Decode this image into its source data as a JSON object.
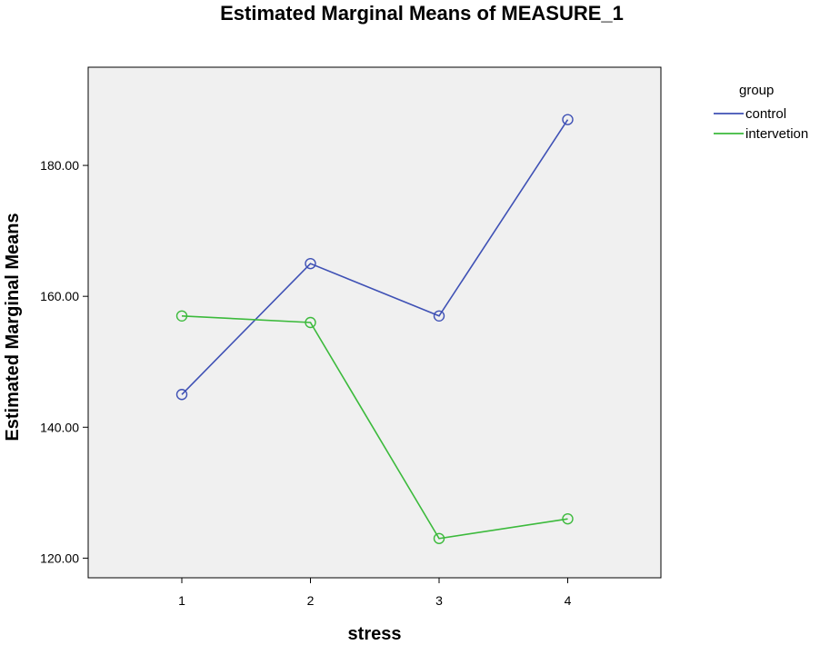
{
  "chart_data": {
    "type": "line",
    "title": "Estimated Marginal Means of MEASURE_1",
    "xlabel": "stress",
    "ylabel": "Estimated Marginal Means",
    "categories": [
      "1",
      "2",
      "3",
      "4"
    ],
    "ylim": [
      117,
      195
    ],
    "yticks": [
      120,
      140,
      160,
      180
    ],
    "ytick_labels": [
      "120.00",
      "140.00",
      "160.00",
      "180.00"
    ],
    "grid": false,
    "plot_background": "#f0f0f0",
    "legend": {
      "title": "group",
      "placement": "right"
    },
    "series": [
      {
        "name": "control",
        "color": "#3f51b5",
        "marker": "circle",
        "values": [
          145,
          165,
          157,
          187
        ]
      },
      {
        "name": "intervetion",
        "color": "#3cba3c",
        "marker": "circle",
        "values": [
          157,
          156,
          123,
          126
        ]
      }
    ]
  }
}
